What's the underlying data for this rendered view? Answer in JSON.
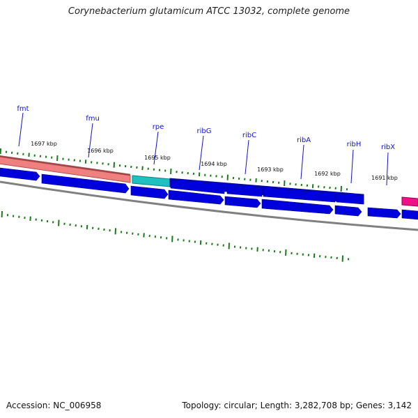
{
  "title": "Corynebacterium glutamicum ATCC 13032, complete genome",
  "footer": {
    "accession": "Accession: NC_006958",
    "summary": "Topology: circular; Length: 3,282,708 bp; Genes: 3,142"
  },
  "colors": {
    "cds": "#0000dd",
    "gene_pink": "#f08080",
    "gene_cyan": "#20c0c0",
    "gene_magenta": "#ee1188",
    "backbone": "#808080",
    "ticks": "#1a7a1a",
    "label": "#1010c8"
  },
  "gene_labels": [
    {
      "name": "fmt"
    },
    {
      "name": "fmu"
    },
    {
      "name": "rpe"
    },
    {
      "name": "ribG"
    },
    {
      "name": "ribC"
    },
    {
      "name": "ribA"
    },
    {
      "name": "ribH"
    },
    {
      "name": "ribX"
    }
  ],
  "kbp_labels": [
    "1697 kbp",
    "1696 kbp",
    "1695 kbp",
    "1694 kbp",
    "1693 kbp",
    "1692 kbp",
    "1691 kbp"
  ]
}
